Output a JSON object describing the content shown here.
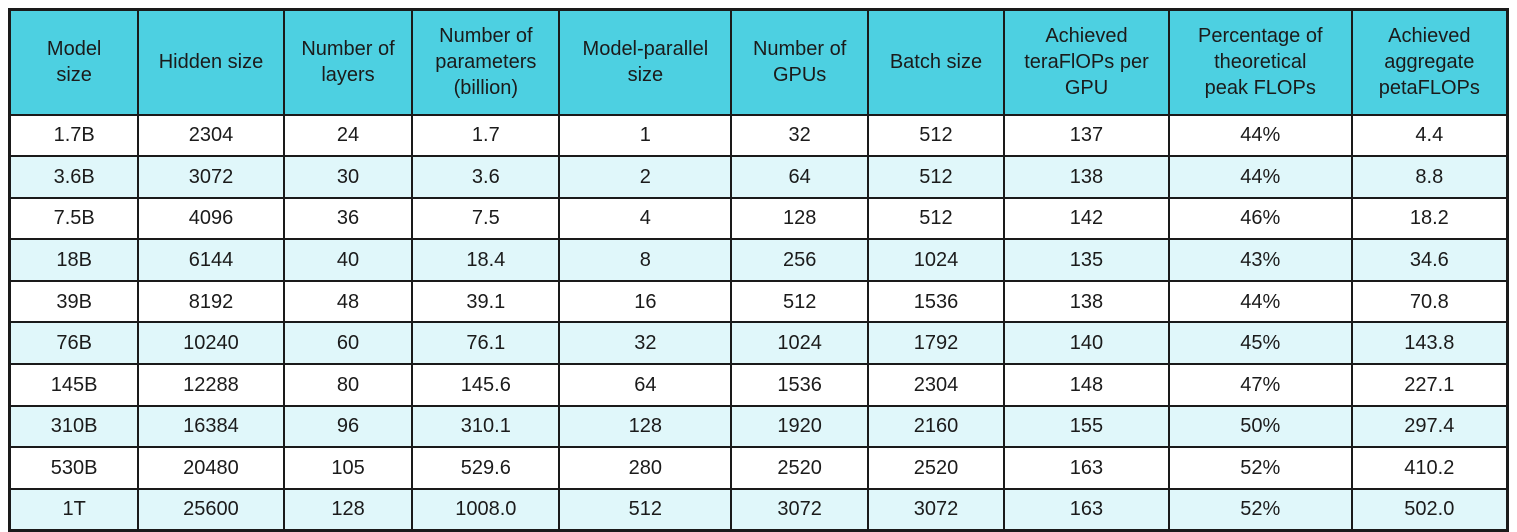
{
  "colors": {
    "header_bg": "#4dd0e1",
    "row_alt_bg": "#e0f7fa",
    "row_bg": "#ffffff",
    "border": "#1a1a1a",
    "text": "#1b1b1b",
    "page_bg": "#ffffff"
  },
  "chart_data": {
    "type": "table",
    "columns": [
      "Model\nsize",
      "Hidden size",
      "Number of\nlayers",
      "Number of\nparameters\n(billion)",
      "Model-parallel\nsize",
      "Number of\nGPUs",
      "Batch size",
      "Achieved\nteraFlOPs per\nGPU",
      "Percentage of\ntheoretical\npeak FLOPs",
      "Achieved\naggregate\npetaFLOPs"
    ],
    "rows": [
      [
        "1.7B",
        "2304",
        "24",
        "1.7",
        "1",
        "32",
        "512",
        "137",
        "44%",
        "4.4"
      ],
      [
        "3.6B",
        "3072",
        "30",
        "3.6",
        "2",
        "64",
        "512",
        "138",
        "44%",
        "8.8"
      ],
      [
        "7.5B",
        "4096",
        "36",
        "7.5",
        "4",
        "128",
        "512",
        "142",
        "46%",
        "18.2"
      ],
      [
        "18B",
        "6144",
        "40",
        "18.4",
        "8",
        "256",
        "1024",
        "135",
        "43%",
        "34.6"
      ],
      [
        "39B",
        "8192",
        "48",
        "39.1",
        "16",
        "512",
        "1536",
        "138",
        "44%",
        "70.8"
      ],
      [
        "76B",
        "10240",
        "60",
        "76.1",
        "32",
        "1024",
        "1792",
        "140",
        "45%",
        "143.8"
      ],
      [
        "145B",
        "12288",
        "80",
        "145.6",
        "64",
        "1536",
        "2304",
        "148",
        "47%",
        "227.1"
      ],
      [
        "310B",
        "16384",
        "96",
        "310.1",
        "128",
        "1920",
        "2160",
        "155",
        "50%",
        "297.4"
      ],
      [
        "530B",
        "20480",
        "105",
        "529.6",
        "280",
        "2520",
        "2520",
        "163",
        "52%",
        "410.2"
      ],
      [
        "1T",
        "25600",
        "128",
        "1008.0",
        "512",
        "3072",
        "3072",
        "163",
        "52%",
        "502.0"
      ]
    ],
    "layout": {
      "column_widths_pct": [
        8.6,
        9.7,
        8.6,
        9.8,
        11.5,
        9.1,
        9.1,
        11.0,
        12.2,
        10.4
      ],
      "grid": true,
      "striped_rows": true
    }
  }
}
